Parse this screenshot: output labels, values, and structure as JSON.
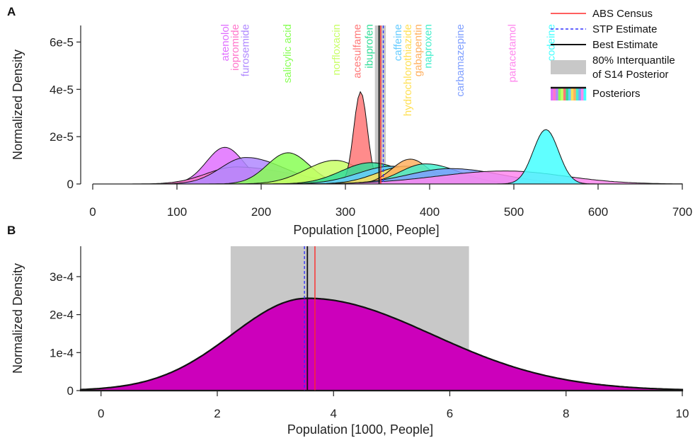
{
  "chart_data": [
    {
      "panel": "A",
      "type": "area",
      "xlabel": "Population [1000, People]",
      "ylabel": "Normalized Density",
      "xlim": [
        0,
        700
      ],
      "ylim": [
        0,
        6.7e-05
      ],
      "xticks": [
        0,
        100,
        200,
        300,
        400,
        500,
        600,
        700
      ],
      "xtick_labels": [
        "0",
        "100",
        "200",
        "300",
        "400",
        "500",
        "600",
        "700"
      ],
      "yticks": [
        0,
        2e-05,
        4e-05,
        6e-05
      ],
      "ytick_labels": [
        "0",
        "2e-5",
        "4e-5",
        "6e-5"
      ],
      "interquantile": [
        335,
        348
      ],
      "vlines": [
        {
          "name": "ABS Census",
          "x": 342,
          "color": "#ff2a2a",
          "style": "solid"
        },
        {
          "name": "STP Estimate",
          "x": 345,
          "color": "#3333ff",
          "style": "dashed"
        },
        {
          "name": "Best Estimate",
          "x": 340,
          "color": "#111111",
          "style": "solid"
        }
      ],
      "series": [
        {
          "name": "atenolol",
          "mode": 157,
          "peak": 1.55e-05,
          "sd_left": 22,
          "sd_right": 22,
          "color": "#e070ff"
        },
        {
          "name": "iopromide",
          "mode": 170,
          "peak": 7.2e-06,
          "sd_left": 35,
          "sd_right": 65,
          "color": "#ff77cc"
        },
        {
          "name": "furosemide",
          "mode": 182,
          "peak": 1.12e-05,
          "sd_left": 30,
          "sd_right": 45,
          "color": "#b088ff"
        },
        {
          "name": "salicylic acid",
          "mode": 232,
          "peak": 1.32e-05,
          "sd_left": 25,
          "sd_right": 25,
          "color": "#88ff55"
        },
        {
          "name": "norfloxacin",
          "mode": 288,
          "peak": 1e-05,
          "sd_left": 35,
          "sd_right": 30,
          "color": "#c8ff66"
        },
        {
          "name": "acesulfame",
          "mode": 318,
          "peak": 3.9e-05,
          "sd_left": 8,
          "sd_right": 8,
          "color": "#ff7777"
        },
        {
          "name": "ibuprofen",
          "mode": 330,
          "peak": 9e-06,
          "sd_left": 35,
          "sd_right": 40,
          "color": "#33dd99"
        },
        {
          "name": "caffeine",
          "mode": 355,
          "peak": 7.5e-06,
          "sd_left": 40,
          "sd_right": 45,
          "color": "#66ccff"
        },
        {
          "name": "hydrochlorothiazide",
          "mode": 372,
          "peak": 7.5e-06,
          "sd_left": 35,
          "sd_right": 40,
          "color": "#ffe055"
        },
        {
          "name": "gabapentin",
          "mode": 377,
          "peak": 1.05e-05,
          "sd_left": 22,
          "sd_right": 22,
          "color": "#ffb060"
        },
        {
          "name": "naproxen",
          "mode": 395,
          "peak": 8.5e-06,
          "sd_left": 30,
          "sd_right": 40,
          "color": "#44eecc"
        },
        {
          "name": "carbamazepine",
          "mode": 425,
          "peak": 6.5e-06,
          "sd_left": 50,
          "sd_right": 60,
          "color": "#7f9fff"
        },
        {
          "name": "paracetamol",
          "mode": 490,
          "peak": 5.5e-06,
          "sd_left": 80,
          "sd_right": 70,
          "color": "#ff88ee"
        },
        {
          "name": "codeine",
          "mode": 538,
          "peak": 2.3e-05,
          "sd_left": 15,
          "sd_right": 15,
          "color": "#44ffff"
        }
      ]
    },
    {
      "panel": "B",
      "type": "area",
      "xlabel": "Population [1000, People]",
      "ylabel": "Normalized Density",
      "xlim": [
        -0.35,
        10
      ],
      "ylim": [
        0,
        0.00038
      ],
      "xticks": [
        0,
        2,
        4,
        6,
        8,
        10
      ],
      "xtick_labels": [
        "0",
        "2",
        "4",
        "6",
        "8",
        "10"
      ],
      "yticks": [
        0,
        0.0001,
        0.0002,
        0.0003
      ],
      "ytick_labels": [
        "0",
        "1e-4",
        "2e-4",
        "3e-4"
      ],
      "interquantile": [
        2.23,
        6.33
      ],
      "vlines": [
        {
          "name": "ABS Census",
          "x": 3.68,
          "color": "#ff2a2a",
          "style": "solid"
        },
        {
          "name": "STP Estimate",
          "x": 3.5,
          "color": "#3333ff",
          "style": "dashed"
        },
        {
          "name": "Best Estimate",
          "x": 3.55,
          "color": "#111111",
          "style": "solid"
        }
      ],
      "series": [
        {
          "name": "posterior",
          "mode": 3.55,
          "peak": 0.000243,
          "sd_left": 1.3,
          "sd_right": 2.15,
          "color": "#cc00bb"
        }
      ]
    }
  ],
  "panels": {
    "a_letter": "A",
    "b_letter": "B"
  },
  "legend": {
    "abs_census": "ABS Census",
    "stp_estimate": "STP Estimate",
    "best_estimate": "Best Estimate",
    "interquantile_line1": "80% Interquantile",
    "interquantile_line2": "of S14 Posterior",
    "posteriors": "Posteriors",
    "posterior_swatch_colors": [
      "#e070ff",
      "#ff77cc",
      "#b088ff",
      "#88ff55",
      "#c8ff66",
      "#ff7777",
      "#33dd99",
      "#66ccff",
      "#ffe055",
      "#ffb060",
      "#44eecc",
      "#7f9fff",
      "#ff88ee",
      "#44ffff"
    ]
  }
}
